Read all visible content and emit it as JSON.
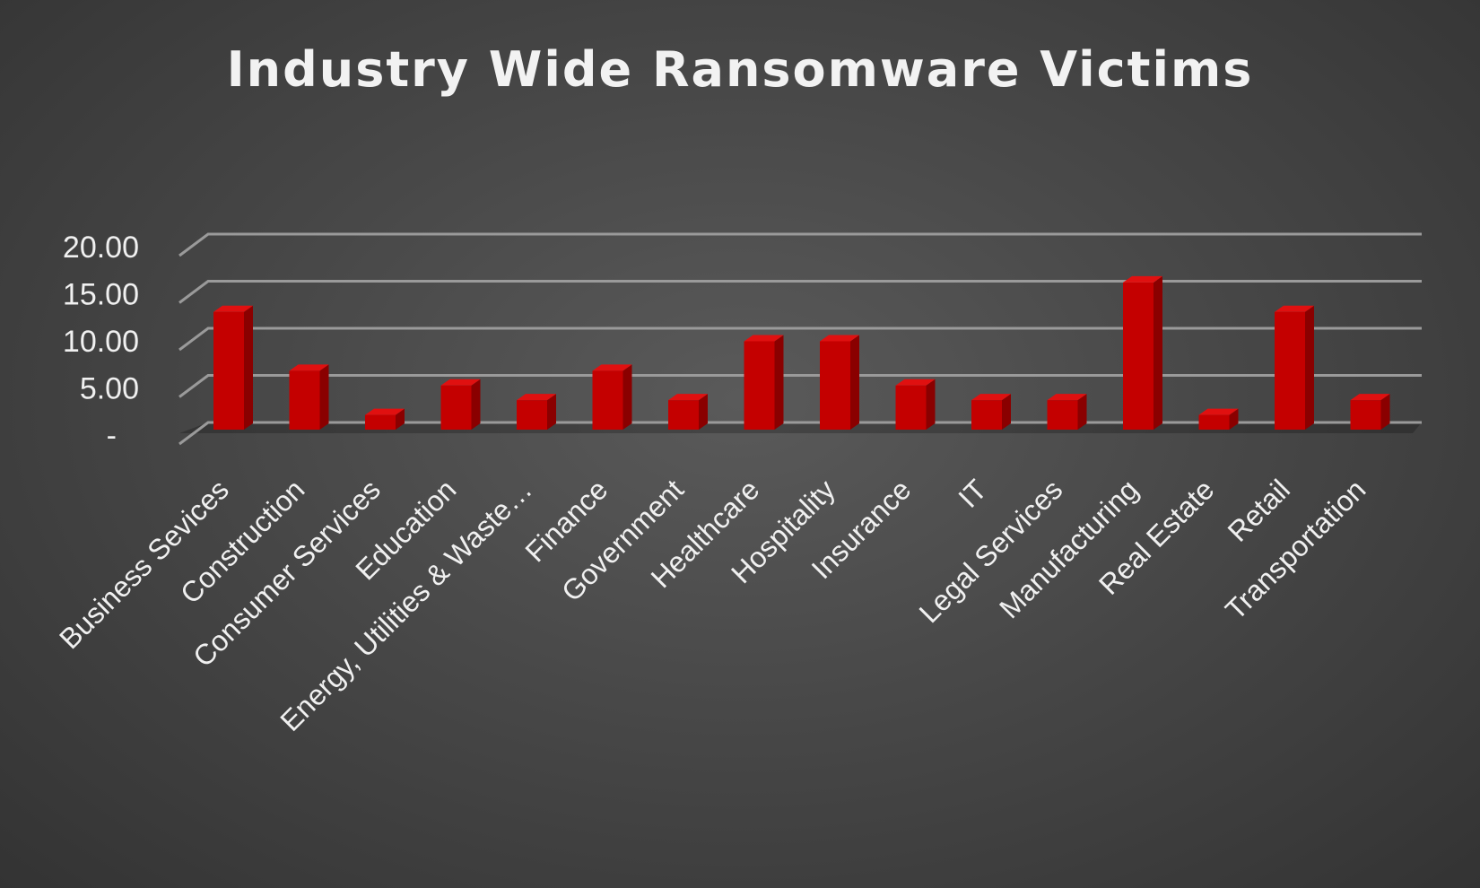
{
  "colors": {
    "bar_front": "#c40000",
    "bar_side": "#8a0000",
    "bar_top": "#e01010",
    "grid": "#9a9a9a",
    "text": "#f0f0f0"
  },
  "chart_data": {
    "type": "bar",
    "title": "Industry Wide Ransomware Victims",
    "xlabel": "",
    "ylabel": "",
    "ylim": [
      0,
      20
    ],
    "yticks": [
      0,
      5,
      10,
      15,
      20
    ],
    "ytick_labels": [
      "-",
      "5.00",
      "10.00",
      "15.00",
      "20.00"
    ],
    "grid": true,
    "legend": "none",
    "categories": [
      "Business Sevices",
      "Construction",
      "Consumer Services",
      "Education",
      "Energy, Utilities & Waste…",
      "Finance",
      "Government",
      "Healthcare",
      "Hospitality",
      "Insurance",
      "IT",
      "Legal Services",
      "Manufacturing",
      "Real Estate",
      "Retail",
      "Transportation"
    ],
    "values": [
      12.5,
      6.25,
      1.56,
      4.69,
      3.13,
      6.25,
      3.13,
      9.38,
      9.38,
      4.69,
      3.13,
      3.13,
      15.63,
      1.56,
      12.5,
      3.13
    ]
  }
}
